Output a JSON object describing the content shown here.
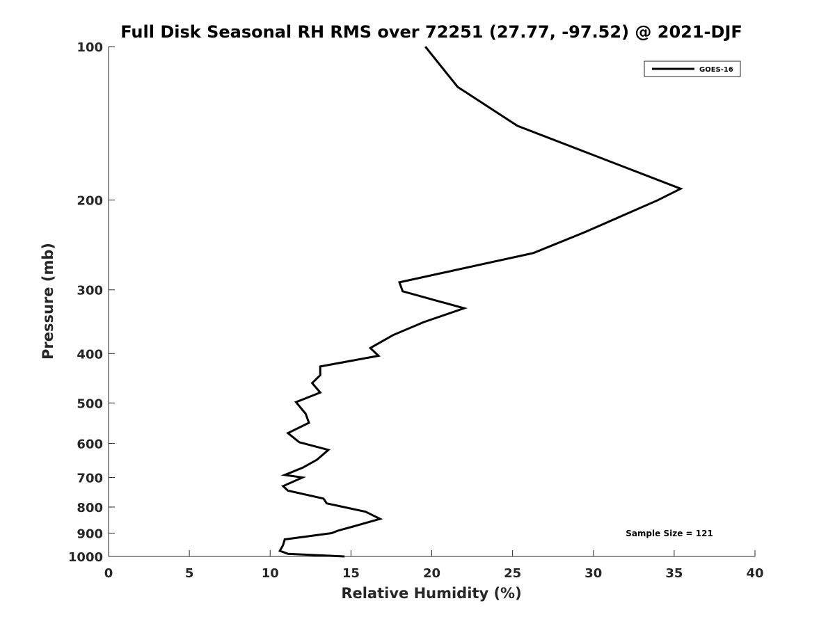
{
  "chart_data": {
    "type": "line",
    "title": "Full Disk Seasonal RH RMS over 72251 (27.77, -97.52) @ 2021-DJF",
    "xlabel": "Relative Humidity (%)",
    "ylabel": "Pressure (mb)",
    "xlim": [
      0,
      40
    ],
    "ylim": [
      100,
      1000
    ],
    "y_scale": "log",
    "y_reversed": true,
    "x_ticks": [
      0,
      5,
      10,
      15,
      20,
      25,
      30,
      35,
      40
    ],
    "y_ticks": [
      100,
      200,
      300,
      400,
      500,
      600,
      700,
      800,
      900,
      1000
    ],
    "grid": false,
    "legend_position": "top-right",
    "annotation": "Sample Size = 121",
    "series": [
      {
        "name": "GOES-16",
        "color": "#000000",
        "x": [
          19.6,
          21.6,
          25.3,
          35.4,
          34.0,
          29.5,
          26.3,
          18.0,
          18.2,
          22.0,
          19.5,
          17.6,
          16.2,
          16.7,
          13.1,
          13.1,
          12.6,
          13.1,
          11.6,
          12.2,
          12.4,
          11.1,
          11.8,
          13.6,
          12.9,
          12.0,
          10.9,
          12.0,
          10.8,
          11.1,
          13.3,
          13.5,
          15.9,
          16.8,
          15.5,
          14.2,
          13.8,
          10.9,
          10.8,
          10.6,
          11.1,
          14.6
        ],
        "y": [
          100,
          120,
          143,
          190,
          200,
          231,
          254,
          290,
          302,
          326,
          347,
          368,
          390,
          404,
          424,
          441,
          457,
          477,
          498,
          525,
          547,
          573,
          597,
          618,
          646,
          670,
          692,
          700,
          728,
          743,
          770,
          787,
          817,
          844,
          867,
          890,
          900,
          926,
          950,
          975,
          988,
          1000
        ]
      }
    ]
  }
}
